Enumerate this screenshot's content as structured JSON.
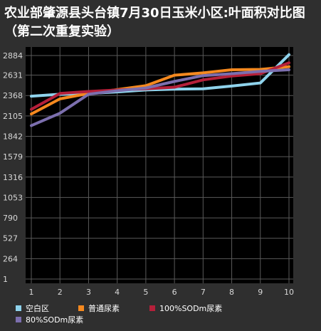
{
  "chart_data": {
    "type": "line",
    "title": "农业部肇源县头台镇7月30日玉米小区:叶面积对比图（第二次重复实验）",
    "x": [
      1,
      2,
      3,
      4,
      5,
      6,
      7,
      8,
      9,
      10
    ],
    "y_ticks": [
      1,
      264,
      527,
      790,
      1053,
      1316,
      1579,
      1842,
      2105,
      2368,
      2631,
      2884
    ],
    "ylim": [
      1,
      2884
    ],
    "grid": true,
    "legend_position": "bottom",
    "series": [
      {
        "name": "空白区",
        "color": "#8fd3ec",
        "values": [
          2360,
          2385,
          2395,
          2415,
          2440,
          2450,
          2455,
          2490,
          2530,
          2895
        ]
      },
      {
        "name": "普通尿素",
        "color": "#f5891f",
        "values": [
          2130,
          2325,
          2395,
          2445,
          2495,
          2630,
          2660,
          2700,
          2705,
          2740
        ]
      },
      {
        "name": "100%SODm尿素",
        "color": "#b5203a",
        "values": [
          2190,
          2395,
          2420,
          2440,
          2455,
          2475,
          2570,
          2620,
          2650,
          2790
        ]
      },
      {
        "name": "80%SODm尿素",
        "color": "#7c6fae",
        "values": [
          1980,
          2140,
          2385,
          2430,
          2465,
          2550,
          2625,
          2650,
          2680,
          2700
        ]
      }
    ]
  }
}
